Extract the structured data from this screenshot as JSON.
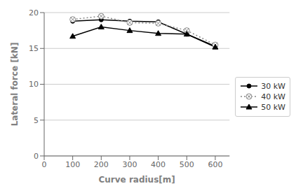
{
  "chart_data": {
    "type": "line",
    "x": [
      100,
      200,
      300,
      400,
      500,
      600
    ],
    "series": [
      {
        "name": "30 kW",
        "color": "#000000",
        "marker": "circle",
        "line_style": "solid",
        "values": [
          18.8,
          19.0,
          18.8,
          18.7,
          17.0,
          15.3
        ]
      },
      {
        "name": "40 kW",
        "color": "#888888",
        "marker": "circled_x",
        "line_style": "dotted",
        "values": [
          19.05,
          19.5,
          18.6,
          18.5,
          17.5,
          15.5
        ]
      },
      {
        "name": "50 kW",
        "color": "#000000",
        "marker": "triangle",
        "line_style": "solid",
        "values": [
          16.7,
          18.0,
          17.5,
          17.1,
          17.0,
          15.2
        ]
      }
    ],
    "xlabel": "Curve radius[m]",
    "ylabel": "Lateral force [kN]",
    "xlim": [
      0,
      650
    ],
    "ylim": [
      0,
      20
    ],
    "xticks": [
      0,
      100,
      200,
      300,
      400,
      500,
      600
    ],
    "yticks": [
      0,
      5,
      10,
      15,
      20
    ],
    "grid": "y",
    "legend": "right"
  }
}
